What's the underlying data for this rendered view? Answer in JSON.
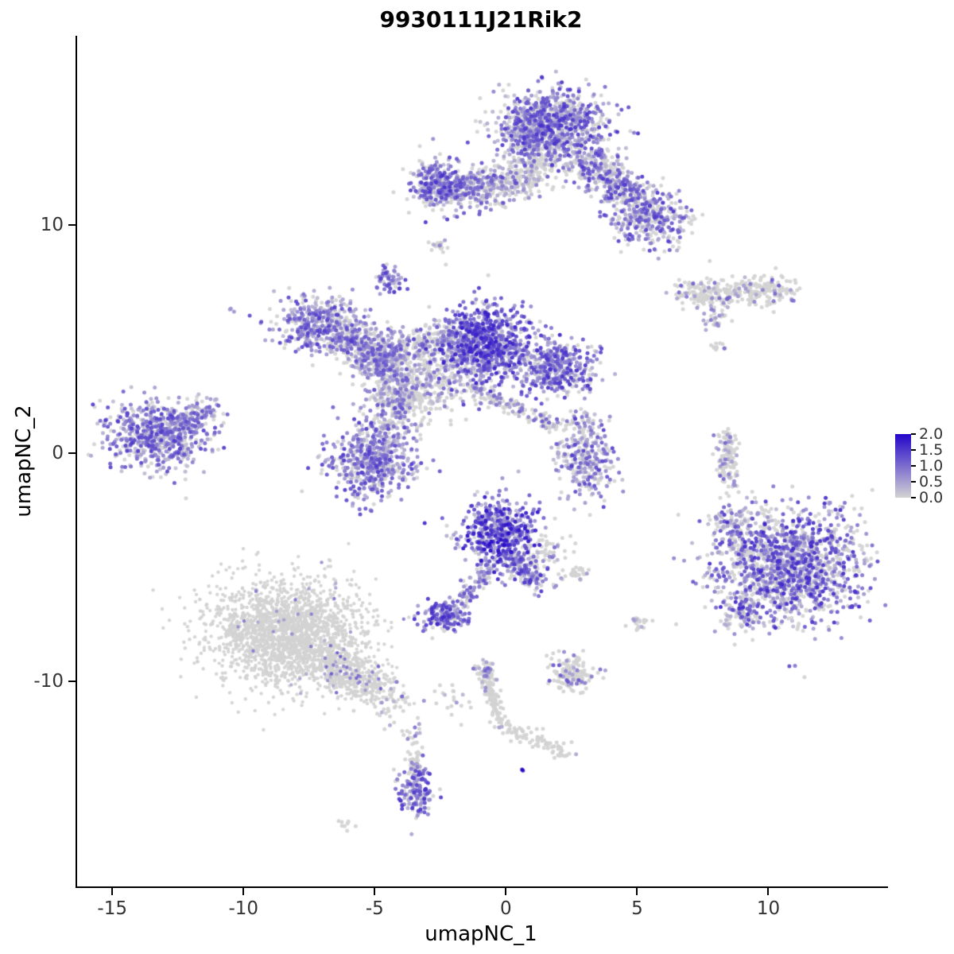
{
  "title": "9930111J21Rik2",
  "chart_data": {
    "type": "scatter",
    "subtype": "umap-feature-plot",
    "title": "9930111J21Rik2",
    "xlabel": "umapNC_1",
    "ylabel": "umapNC_2",
    "xlim": [
      -16.4,
      14.5
    ],
    "ylim": [
      -19.0,
      18.3
    ],
    "x_ticks": [
      -15,
      -10,
      -5,
      0,
      5,
      10
    ],
    "y_ticks": [
      10,
      0,
      -10
    ],
    "grid": false,
    "point_radius": 2.5,
    "axis_color": "#000000",
    "tick_label_color": "#333333",
    "legend": {
      "position": "right",
      "min": 0,
      "max": 2,
      "low_color": "#D3D3D3",
      "high_color": "#2306C9",
      "ticks": [
        {
          "label": "2.0",
          "value": 2.0
        },
        {
          "label": "1.5",
          "value": 1.5
        },
        {
          "label": "1.0",
          "value": 1.0
        },
        {
          "label": "0.5",
          "value": 0.5
        },
        {
          "label": "0.0",
          "value": 0.0
        }
      ]
    },
    "clusters": [
      {
        "name": "top-main",
        "shape": "blob",
        "cx": 1.8,
        "cy": 14.4,
        "sx": 0.95,
        "sy": 0.8,
        "n": 850,
        "p0": 0.35,
        "lo": 0.2,
        "hi": 1.6
      },
      {
        "name": "top-main-west",
        "shape": "blob",
        "cx": 0.7,
        "cy": 13.9,
        "sx": 0.5,
        "sy": 0.6,
        "n": 200,
        "p0": 0.4,
        "lo": 0.2,
        "hi": 1.3
      },
      {
        "name": "top-arm-southeast",
        "shape": "strand",
        "x1": 2.9,
        "y1": 13.0,
        "x2": 5.0,
        "y2": 11.0,
        "sx": 0.5,
        "sy": 0.4,
        "n": 400,
        "p0": 0.42,
        "lo": 0.2,
        "hi": 1.5
      },
      {
        "name": "top-arm-tip",
        "shape": "blob",
        "cx": 5.4,
        "cy": 10.2,
        "sx": 0.8,
        "sy": 0.6,
        "n": 320,
        "p0": 0.42,
        "lo": 0.2,
        "hi": 1.5
      },
      {
        "name": "top-west-arm",
        "shape": "strand",
        "x1": 0.1,
        "y1": 11.7,
        "x2": -2.9,
        "y2": 11.5,
        "sx": 0.45,
        "sy": 0.45,
        "n": 380,
        "p0": 0.45,
        "lo": 0.2,
        "hi": 1.4
      },
      {
        "name": "top-west-knot",
        "shape": "blob",
        "cx": -2.75,
        "cy": 11.8,
        "sx": 0.45,
        "sy": 0.55,
        "n": 220,
        "p0": 0.28,
        "lo": 0.3,
        "hi": 1.6
      },
      {
        "name": "top-under-halo",
        "shape": "blob",
        "cx": 0.9,
        "cy": 12.3,
        "sx": 0.9,
        "sy": 0.55,
        "n": 140,
        "p0": 0.75,
        "lo": 0.2,
        "hi": 1.2
      },
      {
        "name": "top-under-strand",
        "shape": "strand",
        "x1": 1.2,
        "y1": 12.9,
        "x2": 0.3,
        "y2": 11.7,
        "sx": 0.3,
        "sy": 0.3,
        "n": 80,
        "p0": 0.8,
        "lo": 0.2,
        "hi": 1.0
      },
      {
        "name": "tiny-mid-dots",
        "shape": "blob",
        "cx": -2.7,
        "cy": 9.0,
        "sx": 0.18,
        "sy": 0.25,
        "n": 20,
        "p0": 0.85,
        "lo": 0.3,
        "hi": 0.9
      },
      {
        "name": "small-knob",
        "shape": "blob",
        "cx": -4.5,
        "cy": 7.6,
        "sx": 0.24,
        "sy": 0.35,
        "n": 55,
        "p0": 0.22,
        "lo": 0.4,
        "hi": 1.5
      },
      {
        "name": "central-west-lobe",
        "shape": "blob",
        "cx": -7.15,
        "cy": 5.6,
        "sx": 0.8,
        "sy": 0.65,
        "n": 430,
        "p0": 0.3,
        "lo": 0.2,
        "hi": 1.5
      },
      {
        "name": "central-west-bridge",
        "shape": "strand",
        "x1": -6.3,
        "y1": 5.1,
        "x2": -4.7,
        "y2": 4.3,
        "sx": 0.45,
        "sy": 0.4,
        "n": 220,
        "p0": 0.45,
        "lo": 0.2,
        "hi": 1.3
      },
      {
        "name": "central-mid-node",
        "shape": "blob",
        "cx": -4.7,
        "cy": 3.9,
        "sx": 0.6,
        "sy": 0.55,
        "n": 280,
        "p0": 0.45,
        "lo": 0.2,
        "hi": 1.3
      },
      {
        "name": "central-under-spray",
        "shape": "blob",
        "cx": -4.0,
        "cy": 2.6,
        "sx": 0.7,
        "sy": 0.6,
        "n": 160,
        "p0": 0.7,
        "lo": 0.2,
        "hi": 1.1
      },
      {
        "name": "central-upper-bridge",
        "shape": "strand",
        "x1": -4.4,
        "y1": 4.6,
        "x2": -2.0,
        "y2": 5.1,
        "sx": 0.4,
        "sy": 0.4,
        "n": 180,
        "p0": 0.5,
        "lo": 0.2,
        "hi": 1.3
      },
      {
        "name": "central-main-lobe",
        "shape": "blob",
        "cx": -0.9,
        "cy": 4.8,
        "sx": 0.85,
        "sy": 0.85,
        "n": 850,
        "p0": 0.18,
        "lo": 0.3,
        "hi": 1.8
      },
      {
        "name": "central-east-lobe",
        "shape": "blob",
        "cx": 1.9,
        "cy": 3.7,
        "sx": 0.7,
        "sy": 0.55,
        "n": 420,
        "p0": 0.25,
        "lo": 0.3,
        "hi": 1.6
      },
      {
        "name": "central-gray-web",
        "shape": "blob",
        "cx": -2.6,
        "cy": 3.4,
        "sx": 0.9,
        "sy": 0.8,
        "n": 260,
        "p0": 0.72,
        "lo": 0.2,
        "hi": 1.1
      },
      {
        "name": "central-south-node",
        "shape": "blob",
        "cx": -5.2,
        "cy": -0.4,
        "sx": 0.8,
        "sy": 0.8,
        "n": 520,
        "p0": 0.3,
        "lo": 0.2,
        "hi": 1.5
      },
      {
        "name": "central-south-bridge",
        "shape": "strand",
        "x1": -4.9,
        "y1": 0.5,
        "x2": -3.8,
        "y2": 2.8,
        "sx": 0.45,
        "sy": 0.45,
        "n": 220,
        "p0": 0.5,
        "lo": 0.2,
        "hi": 1.3
      },
      {
        "name": "central-diag-strand",
        "shape": "strand",
        "x1": -1.3,
        "y1": 2.8,
        "x2": 2.0,
        "y2": 1.1,
        "sx": 0.18,
        "sy": 0.18,
        "n": 140,
        "p0": 0.6,
        "lo": 0.2,
        "hi": 1.2
      },
      {
        "name": "west-island",
        "shape": "blob",
        "cx": -13.3,
        "cy": 0.8,
        "sx": 1.0,
        "sy": 0.75,
        "n": 650,
        "p0": 0.28,
        "lo": 0.2,
        "hi": 1.5
      },
      {
        "name": "west-island-arm",
        "shape": "strand",
        "x1": -12.3,
        "y1": 1.3,
        "x2": -11.3,
        "y2": 2.1,
        "sx": 0.3,
        "sy": 0.25,
        "n": 90,
        "p0": 0.4,
        "lo": 0.2,
        "hi": 1.3
      },
      {
        "name": "east-small-cluster",
        "shape": "blob",
        "cx": 3.0,
        "cy": -0.3,
        "sx": 0.55,
        "sy": 0.85,
        "n": 260,
        "p0": 0.35,
        "lo": 0.2,
        "hi": 1.5
      },
      {
        "name": "east-small-upper",
        "shape": "blob",
        "cx": 2.8,
        "cy": 1.3,
        "sx": 0.3,
        "sy": 0.3,
        "n": 40,
        "p0": 0.6,
        "lo": 0.2,
        "hi": 1.2
      },
      {
        "name": "east-strip",
        "shape": "strand",
        "x1": 8.3,
        "y1": 0.8,
        "x2": 8.5,
        "y2": -1.4,
        "sx": 0.2,
        "sy": 0.25,
        "n": 130,
        "p0": 0.8,
        "lo": 0.3,
        "hi": 1.2
      },
      {
        "name": "far-east-ridge-west",
        "shape": "blob",
        "cx": 7.3,
        "cy": 7.0,
        "sx": 0.5,
        "sy": 0.28,
        "n": 80,
        "p0": 0.86,
        "lo": 0.3,
        "hi": 1.2
      },
      {
        "name": "far-east-ridge",
        "shape": "strand",
        "x1": 7.5,
        "y1": 6.9,
        "x2": 9.9,
        "y2": 7.2,
        "sx": 0.35,
        "sy": 0.3,
        "n": 150,
        "p0": 0.88,
        "lo": 0.3,
        "hi": 1.2
      },
      {
        "name": "far-east-ridge-east",
        "shape": "blob",
        "cx": 10.1,
        "cy": 7.1,
        "sx": 0.5,
        "sy": 0.35,
        "n": 90,
        "p0": 0.85,
        "lo": 0.3,
        "hi": 1.2
      },
      {
        "name": "far-east-below",
        "shape": "blob",
        "cx": 7.9,
        "cy": 5.9,
        "sx": 0.2,
        "sy": 0.25,
        "n": 30,
        "p0": 0.7,
        "lo": 0.3,
        "hi": 1.0
      },
      {
        "name": "tiny-east-dots",
        "shape": "blob",
        "cx": 8.1,
        "cy": 4.6,
        "sx": 0.16,
        "sy": 0.14,
        "n": 12,
        "p0": 0.7,
        "lo": 0.3,
        "hi": 1.0
      },
      {
        "name": "south-center-main",
        "shape": "blob",
        "cx": -0.35,
        "cy": -3.5,
        "sx": 0.7,
        "sy": 0.75,
        "n": 520,
        "p0": 0.15,
        "lo": 0.3,
        "hi": 2.0
      },
      {
        "name": "south-center-tail",
        "shape": "strand",
        "x1": 0.2,
        "y1": -4.4,
        "x2": 1.1,
        "y2": -5.7,
        "sx": 0.3,
        "sy": 0.3,
        "n": 160,
        "p0": 0.3,
        "lo": 0.3,
        "hi": 1.6
      },
      {
        "name": "south-center-fringe",
        "shape": "blob",
        "cx": 1.5,
        "cy": -4.4,
        "sx": 0.45,
        "sy": 0.5,
        "n": 60,
        "p0": 0.7,
        "lo": 0.2,
        "hi": 1.1
      },
      {
        "name": "south-strand",
        "shape": "strand",
        "x1": -0.6,
        "y1": -4.9,
        "x2": -1.9,
        "y2": -6.5,
        "sx": 0.2,
        "sy": 0.2,
        "n": 90,
        "p0": 0.4,
        "lo": 0.3,
        "hi": 1.3
      },
      {
        "name": "south-knot",
        "shape": "blob",
        "cx": -2.4,
        "cy": -7.1,
        "sx": 0.42,
        "sy": 0.35,
        "n": 170,
        "p0": 0.18,
        "lo": 0.4,
        "hi": 1.7
      },
      {
        "name": "south-pair-dots",
        "shape": "blob",
        "cx": 2.6,
        "cy": -5.3,
        "sx": 0.3,
        "sy": 0.18,
        "n": 30,
        "p0": 0.75,
        "lo": 0.3,
        "hi": 1.1
      },
      {
        "name": "southeast-main",
        "shape": "blob",
        "cx": 10.6,
        "cy": -4.9,
        "sx": 1.4,
        "sy": 1.25,
        "n": 1500,
        "p0": 0.38,
        "lo": 0.2,
        "hi": 1.7
      },
      {
        "name": "southeast-west-edge",
        "shape": "blob",
        "cx": 8.6,
        "cy": -3.3,
        "sx": 0.35,
        "sy": 0.45,
        "n": 90,
        "p0": 0.5,
        "lo": 0.2,
        "hi": 1.3
      },
      {
        "name": "southeast-southwest-edge",
        "shape": "blob",
        "cx": 8.9,
        "cy": -7.0,
        "sx": 0.4,
        "sy": 0.4,
        "n": 80,
        "p0": 0.5,
        "lo": 0.2,
        "hi": 1.3
      },
      {
        "name": "southwest-gray-main",
        "shape": "blob",
        "cx": -8.4,
        "cy": -7.9,
        "sx": 1.5,
        "sy": 1.15,
        "n": 2000,
        "p0": 0.985,
        "lo": 0.3,
        "hi": 1.0,
        "r": 2.2
      },
      {
        "name": "southwest-gray-tail",
        "shape": "strand",
        "x1": -6.9,
        "y1": -9.2,
        "x2": -4.9,
        "y2": -10.3,
        "sx": 0.55,
        "sy": 0.45,
        "n": 450,
        "p0": 0.92,
        "lo": 0.3,
        "hi": 1.2,
        "r": 2.2
      },
      {
        "name": "southwest-tail-spray",
        "shape": "blob",
        "cx": -4.5,
        "cy": -11.2,
        "sx": 0.5,
        "sy": 0.5,
        "n": 40,
        "p0": 0.85,
        "lo": 0.3,
        "hi": 1.1
      },
      {
        "name": "southwest-far-dots",
        "shape": "blob",
        "cx": -3.6,
        "cy": -12.4,
        "sx": 0.3,
        "sy": 0.3,
        "n": 15,
        "p0": 0.8,
        "lo": 0.3,
        "hi": 1.0
      },
      {
        "name": "mid-bottom-spray",
        "shape": "blob",
        "cx": -2.4,
        "cy": -10.8,
        "sx": 0.5,
        "sy": 0.5,
        "n": 20,
        "p0": 0.9,
        "lo": 0.3,
        "hi": 0.9
      },
      {
        "name": "south-small-island",
        "shape": "blob",
        "cx": 2.4,
        "cy": -9.7,
        "sx": 0.5,
        "sy": 0.4,
        "n": 150,
        "p0": 0.87,
        "lo": 0.4,
        "hi": 1.3
      },
      {
        "name": "south-east-dots",
        "shape": "blob",
        "cx": 5.0,
        "cy": -7.4,
        "sx": 0.24,
        "sy": 0.18,
        "n": 22,
        "p0": 0.75,
        "lo": 0.3,
        "hi": 1.1
      },
      {
        "name": "bottom-strand-knot",
        "shape": "blob",
        "cx": -0.85,
        "cy": -9.5,
        "sx": 0.2,
        "sy": 0.22,
        "n": 35,
        "p0": 0.5,
        "lo": 0.3,
        "hi": 1.2
      },
      {
        "name": "bottom-strand-vert",
        "shape": "strand",
        "x1": -0.8,
        "y1": -9.7,
        "x2": -0.3,
        "y2": -11.8,
        "sx": 0.15,
        "sy": 0.2,
        "n": 110,
        "p0": 0.95,
        "lo": 0.3,
        "hi": 0.9
      },
      {
        "name": "bottom-strand-diag",
        "shape": "strand",
        "x1": -0.2,
        "y1": -11.9,
        "x2": 2.3,
        "y2": -13.2,
        "sx": 0.18,
        "sy": 0.18,
        "n": 80,
        "p0": 0.92,
        "lo": 0.3,
        "hi": 1.0
      },
      {
        "name": "bottom-navy-dot",
        "shape": "blob",
        "cx": 0.6,
        "cy": -13.9,
        "sx": 0.06,
        "sy": 0.06,
        "n": 2,
        "p0": 0,
        "lo": 1.7,
        "hi": 2.0
      },
      {
        "name": "bottom-island",
        "shape": "blob",
        "cx": -3.5,
        "cy": -14.8,
        "sx": 0.32,
        "sy": 0.6,
        "n": 150,
        "p0": 0.2,
        "lo": 0.4,
        "hi": 1.6
      },
      {
        "name": "bottom-island-top-strand",
        "shape": "strand",
        "x1": -3.6,
        "y1": -13.2,
        "x2": -3.5,
        "y2": -14.0,
        "sx": 0.12,
        "sy": 0.15,
        "n": 35,
        "p0": 0.85,
        "lo": 0.3,
        "hi": 0.9
      },
      {
        "name": "bottom-far-dot",
        "shape": "blob",
        "cx": -6.1,
        "cy": -16.3,
        "sx": 0.18,
        "sy": 0.1,
        "n": 8,
        "p0": 0.95,
        "lo": 0.3,
        "hi": 0.6
      },
      {
        "name": "west-lone-dot",
        "shape": "blob",
        "cx": -10.5,
        "cy": 6.3,
        "sx": 0.08,
        "sy": 0.08,
        "n": 3,
        "p0": 0.1,
        "lo": 0.5,
        "hi": 1.0
      }
    ]
  }
}
